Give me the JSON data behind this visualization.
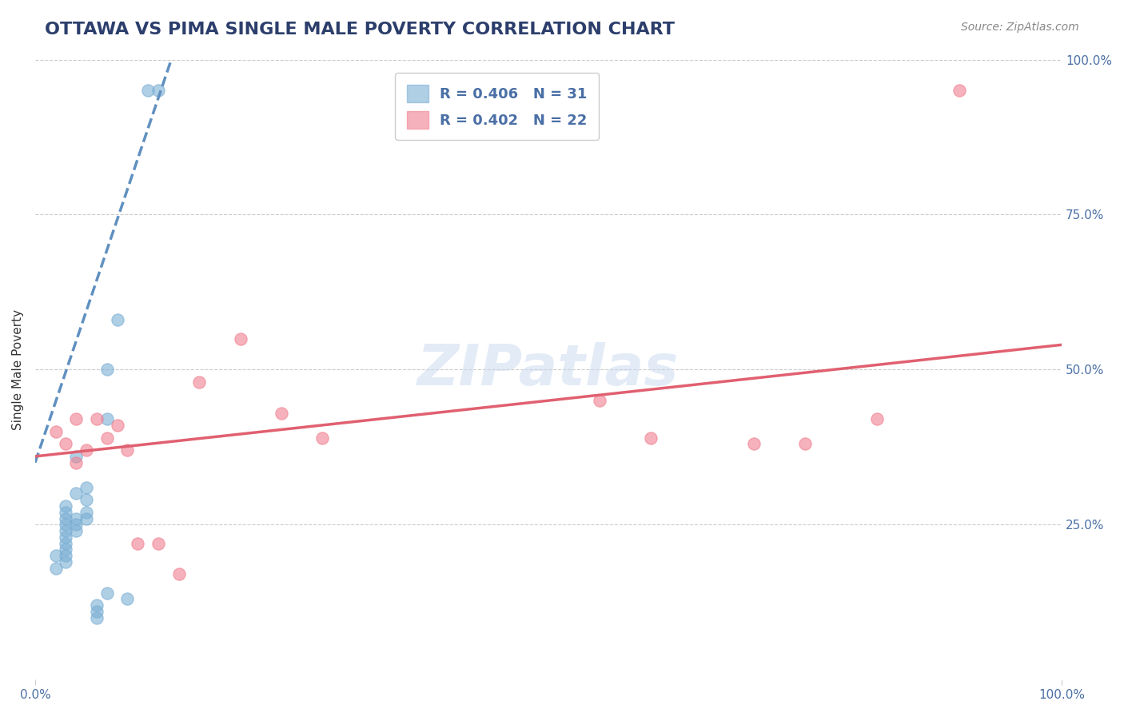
{
  "title": "OTTAWA VS PIMA SINGLE MALE POVERTY CORRELATION CHART",
  "source_text": "Source: ZipAtlas.com",
  "xlabel": "",
  "ylabel": "Single Male Poverty",
  "xlim": [
    0,
    1
  ],
  "ylim": [
    0,
    1
  ],
  "xtick_labels": [
    "0.0%",
    "100.0%"
  ],
  "xtick_positions": [
    0,
    1
  ],
  "ytick_labels": [
    "100.0%",
    "75.0%",
    "50.0%",
    "25.0%"
  ],
  "ytick_positions": [
    1.0,
    0.75,
    0.5,
    0.25
  ],
  "legend_entries": [
    {
      "label": "R = 0.406   N = 31",
      "color": "#a8c4e0"
    },
    {
      "label": "R = 0.402   N = 22",
      "color": "#f4a0b0"
    }
  ],
  "ottawa_color": "#7bafd4",
  "pima_color": "#f08090",
  "ottawa_x": [
    0.02,
    0.02,
    0.03,
    0.03,
    0.03,
    0.03,
    0.03,
    0.03,
    0.03,
    0.03,
    0.03,
    0.03,
    0.04,
    0.04,
    0.04,
    0.04,
    0.04,
    0.05,
    0.05,
    0.05,
    0.05,
    0.06,
    0.06,
    0.06,
    0.07,
    0.07,
    0.07,
    0.08,
    0.09,
    0.11,
    0.12
  ],
  "ottawa_y": [
    0.18,
    0.2,
    0.19,
    0.2,
    0.21,
    0.22,
    0.23,
    0.24,
    0.25,
    0.26,
    0.27,
    0.28,
    0.24,
    0.25,
    0.26,
    0.3,
    0.36,
    0.26,
    0.27,
    0.29,
    0.31,
    0.1,
    0.11,
    0.12,
    0.14,
    0.42,
    0.5,
    0.58,
    0.13,
    0.95,
    0.95
  ],
  "pima_x": [
    0.02,
    0.03,
    0.04,
    0.04,
    0.05,
    0.06,
    0.07,
    0.08,
    0.09,
    0.1,
    0.12,
    0.14,
    0.16,
    0.2,
    0.24,
    0.28,
    0.55,
    0.6,
    0.7,
    0.75,
    0.82,
    0.9
  ],
  "pima_y": [
    0.4,
    0.38,
    0.42,
    0.35,
    0.37,
    0.42,
    0.39,
    0.41,
    0.37,
    0.22,
    0.22,
    0.17,
    0.48,
    0.55,
    0.43,
    0.39,
    0.45,
    0.39,
    0.38,
    0.38,
    0.42,
    0.95
  ],
  "ottawa_line_color": "#6090c0",
  "pima_line_color": "#e06070",
  "grid_color": "#cccccc",
  "title_color": "#2c3e6b",
  "axis_label_color": "#4a6fa5",
  "tick_label_color": "#4a6fa5",
  "watermark_text": "ZIPatlas",
  "watermark_color": "#c8d8f0",
  "background_color": "#ffffff"
}
